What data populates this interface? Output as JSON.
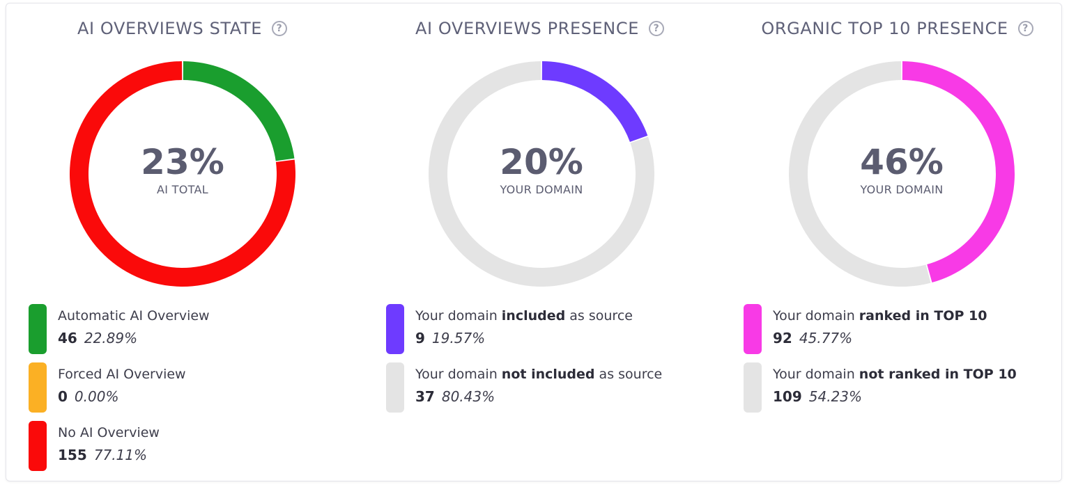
{
  "panels": [
    {
      "title": "AI OVERVIEWS STATE",
      "center_value": "23%",
      "center_label": "AI TOTAL",
      "legend": [
        {
          "prefix": "Automatic AI Overview",
          "bold": "",
          "suffix": "",
          "count": "46",
          "percent": "22.89%",
          "color": "#1a9e2e"
        },
        {
          "prefix": "Forced AI Overview",
          "bold": "",
          "suffix": "",
          "count": "0",
          "percent": "0.00%",
          "color": "#fbb024"
        },
        {
          "prefix": "No AI Overview",
          "bold": "",
          "suffix": "",
          "count": "155",
          "percent": "77.11%",
          "color": "#fa0a0a"
        }
      ]
    },
    {
      "title": "AI OVERVIEWS PRESENCE",
      "center_value": "20%",
      "center_label": "YOUR DOMAIN",
      "legend": [
        {
          "prefix": "Your domain ",
          "bold": "included",
          "suffix": " as source",
          "count": "9",
          "percent": "19.57%",
          "color": "#6e3bff"
        },
        {
          "prefix": "Your domain ",
          "bold": "not included",
          "suffix": " as source",
          "count": "37",
          "percent": "80.43%",
          "color": "#e4e4e4"
        }
      ]
    },
    {
      "title": "ORGANIC TOP 10 PRESENCE",
      "center_value": "46%",
      "center_label": "YOUR DOMAIN",
      "legend": [
        {
          "prefix": "Your domain ",
          "bold": "ranked in TOP 10",
          "suffix": "",
          "count": "92",
          "percent": "45.77%",
          "color": "#f83ae6"
        },
        {
          "prefix": "Your domain ",
          "bold": "not ranked in TOP 10",
          "suffix": "",
          "count": "109",
          "percent": "54.23%",
          "color": "#e4e4e4"
        }
      ]
    }
  ],
  "help_icon_glyph": "?",
  "chart_data": [
    {
      "type": "pie",
      "title": "AI OVERVIEWS STATE",
      "categories": [
        "Automatic AI Overview",
        "Forced AI Overview",
        "No AI Overview"
      ],
      "values": [
        46,
        0,
        155
      ],
      "colors": [
        "#1a9e2e",
        "#fbb024",
        "#fa0a0a"
      ]
    },
    {
      "type": "pie",
      "title": "AI OVERVIEWS PRESENCE",
      "categories": [
        "Your domain included as source",
        "Your domain not included as source"
      ],
      "values": [
        9,
        37
      ],
      "colors": [
        "#6e3bff",
        "#e4e4e4"
      ]
    },
    {
      "type": "pie",
      "title": "ORGANIC TOP 10 PRESENCE",
      "categories": [
        "Your domain ranked in TOP 10",
        "Your domain not ranked in TOP 10"
      ],
      "values": [
        92,
        109
      ],
      "colors": [
        "#f83ae6",
        "#e4e4e4"
      ]
    }
  ]
}
